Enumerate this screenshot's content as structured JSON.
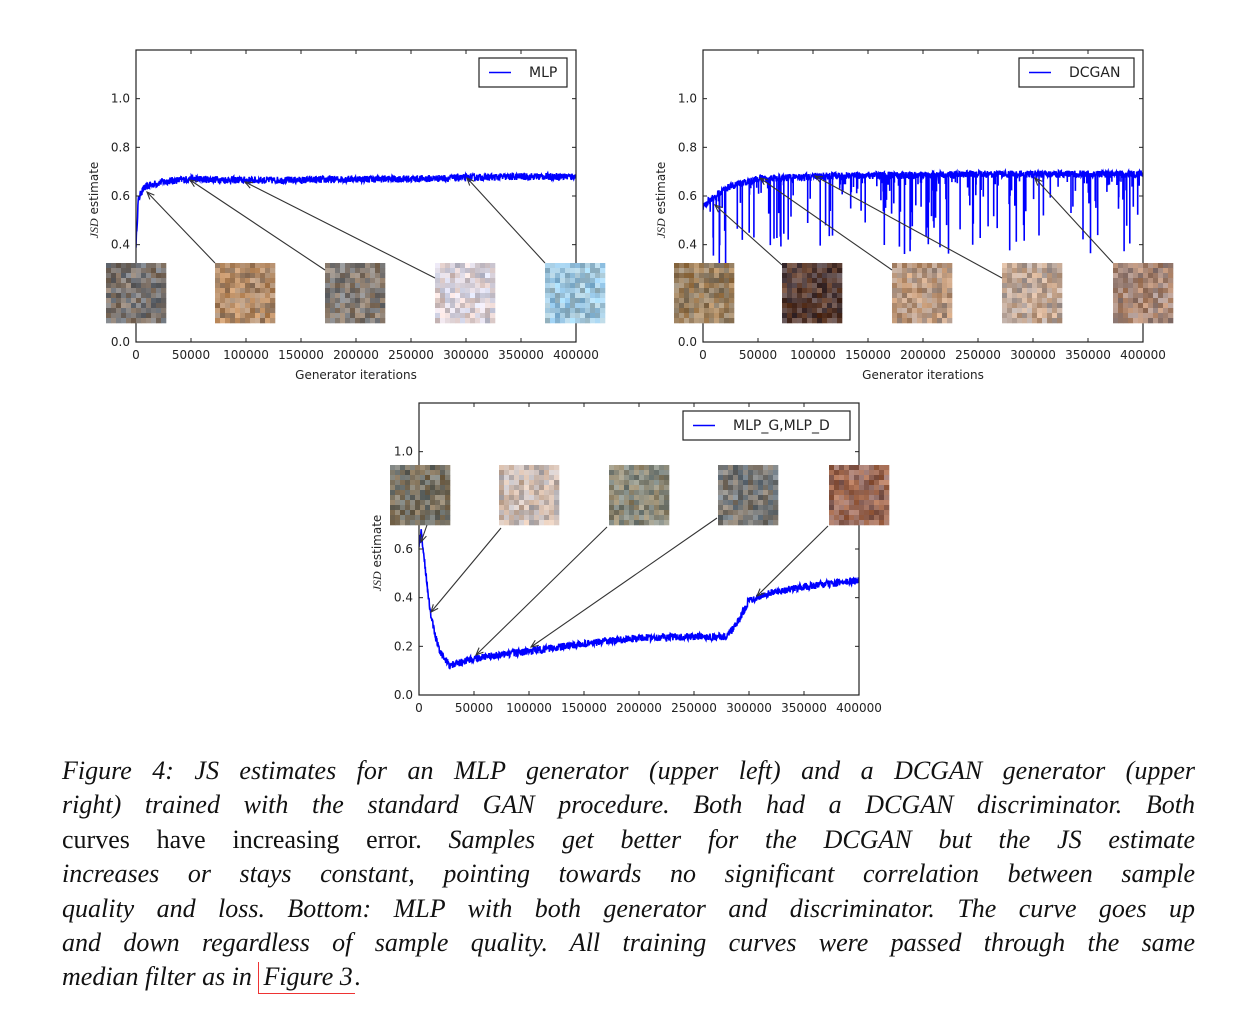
{
  "chart_data": [
    {
      "type": "line",
      "xlabel": "Generator iterations",
      "ylabel_italic": "JSD",
      "ylabel_rest": " estimate",
      "xlim": [
        0,
        400000
      ],
      "ylim": [
        0,
        1.2
      ],
      "xticks": [
        "0",
        "50000",
        "100000",
        "150000",
        "200000",
        "250000",
        "300000",
        "350000",
        "400000"
      ],
      "yticks": [
        "0.0",
        "0.2",
        "0.4",
        "0.6",
        "0.8",
        "1.0"
      ],
      "legend_position": "top-right",
      "series": [
        {
          "name": "MLP",
          "color": "#0000ff",
          "x": [
            0,
            2000,
            5000,
            10000,
            25000,
            50000,
            100000,
            150000,
            200000,
            250000,
            300000,
            350000,
            400000
          ],
          "y": [
            0.4,
            0.58,
            0.62,
            0.64,
            0.66,
            0.67,
            0.665,
            0.665,
            0.67,
            0.67,
            0.675,
            0.68,
            0.68
          ]
        }
      ],
      "sample_annotations_x": [
        0,
        10000,
        50000,
        100000,
        300000
      ]
    },
    {
      "type": "line",
      "xlabel": "Generator iterations",
      "ylabel_italic": "JSD",
      "ylabel_rest": " estimate",
      "xlim": [
        0,
        400000
      ],
      "ylim": [
        0,
        1.2
      ],
      "xticks": [
        "0",
        "50000",
        "100000",
        "150000",
        "200000",
        "250000",
        "300000",
        "350000",
        "400000"
      ],
      "yticks": [
        "0.0",
        "0.2",
        "0.4",
        "0.6",
        "0.8",
        "1.0"
      ],
      "legend_position": "top-right",
      "series": [
        {
          "name": "DCGAN",
          "color": "#0000ff",
          "x": [
            0,
            5000,
            10000,
            25000,
            50000,
            100000,
            150000,
            200000,
            250000,
            300000,
            350000,
            400000
          ],
          "y": [
            0.55,
            0.58,
            0.6,
            0.64,
            0.67,
            0.68,
            0.685,
            0.685,
            0.69,
            0.69,
            0.69,
            0.69
          ]
        }
      ],
      "sample_annotations_x": [
        0,
        10000,
        50000,
        100000,
        300000
      ]
    },
    {
      "type": "line",
      "xlabel": "",
      "ylabel_italic": "JSD",
      "ylabel_rest": " estimate",
      "xlim": [
        0,
        400000
      ],
      "ylim": [
        0,
        1.2
      ],
      "xticks": [
        "0",
        "50000",
        "100000",
        "150000",
        "200000",
        "250000",
        "300000",
        "350000",
        "400000"
      ],
      "yticks": [
        "0.0",
        "0.2",
        "0.4",
        "0.6",
        "0.8",
        "1.0"
      ],
      "legend_position": "top-right",
      "series": [
        {
          "name": "MLP_G,MLP_D",
          "color": "#0000ff",
          "x": [
            0,
            2000,
            5000,
            10000,
            15000,
            20000,
            28000,
            50000,
            100000,
            150000,
            200000,
            250000,
            280000,
            290000,
            300000,
            320000,
            350000,
            400000
          ],
          "y": [
            0.62,
            0.67,
            0.55,
            0.35,
            0.24,
            0.17,
            0.12,
            0.15,
            0.18,
            0.21,
            0.235,
            0.24,
            0.24,
            0.3,
            0.39,
            0.42,
            0.445,
            0.47
          ]
        }
      ],
      "sample_annotations_x": [
        0,
        10000,
        50000,
        100000,
        300000
      ]
    }
  ],
  "caption": {
    "lines": [
      [
        {
          "t": "Figure 4: JS estimates for an MLP generator (upper left) and a DCGAN generator (upper",
          "s": "i"
        }
      ],
      [
        {
          "t": "right) trained with the standard GAN procedure. Both had a DCGAN discriminator. Both",
          "s": "i"
        }
      ],
      [
        {
          "t": "curves have increasing error. ",
          "s": "u"
        },
        {
          "t": " Samples get better for the DCGAN but the JS estimate",
          "s": "i"
        }
      ],
      [
        {
          "t": "increases or stays constant, pointing towards no significant correlation between sample",
          "s": "i"
        }
      ],
      [
        {
          "t": "quality and loss. Bottom: MLP with both generator and discriminator. The curve goes up",
          "s": "i"
        }
      ],
      [
        {
          "t": "and down regardless of sample quality. All training curves were passed through the same",
          "s": "i"
        }
      ],
      [
        {
          "t": "median filter as in ",
          "s": "i"
        },
        {
          "t": "Figure 3",
          "s": "link"
        },
        {
          "t": ".",
          "s": "i"
        }
      ]
    ]
  }
}
